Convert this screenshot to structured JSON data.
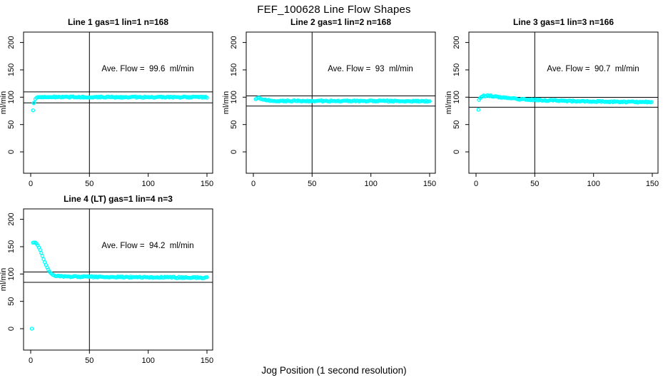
{
  "window": {
    "background": "#ffffff"
  },
  "chart_data": {
    "type": "scatter",
    "title": "FEF_100628  Line Flow Shapes",
    "xlabel": "Jog Position (1 second resolution)",
    "ylabel": "ml/min",
    "marker": "open-circle",
    "marker_color": "#00ffff",
    "axis_color": "#000000",
    "xlim": [
      -6,
      153
    ],
    "ylim": [
      -39,
      219
    ],
    "xticks": [
      0,
      50,
      100,
      150
    ],
    "yticks": [
      0,
      50,
      100,
      150,
      200
    ],
    "vline_x": 50,
    "grid": false,
    "layout": {
      "rows": 2,
      "cols": 3,
      "used_cells": 4
    },
    "panels": [
      {
        "id": "line-1",
        "title": "Line 1 gas=1 lin=1 n=168",
        "annotation": "Ave. Flow =  99.6  ml/min",
        "avg_flow_ml_min": 99.6,
        "n_points": 168,
        "ref_lines": [
          109.6,
          89.6
        ],
        "x_end": 150,
        "profile_keyframes": [
          [
            3,
            90
          ],
          [
            3.5,
            94
          ],
          [
            4,
            96.5
          ],
          [
            5,
            99
          ],
          [
            6,
            99.8
          ],
          [
            8,
            100.2
          ],
          [
            15,
            100.4
          ],
          [
            30,
            100.3
          ],
          [
            60,
            100.2
          ],
          [
            100,
            100.1
          ],
          [
            150,
            100
          ]
        ],
        "outlier_points": [
          [
            2,
            76
          ],
          [
            2.5,
            89
          ]
        ]
      },
      {
        "id": "line-2",
        "title": "Line 2 gas=1 lin=2 n=168",
        "annotation": "Ave. Flow =  93  ml/min",
        "avg_flow_ml_min": 93,
        "n_points": 168,
        "ref_lines": [
          102.3,
          83.7
        ],
        "x_end": 150,
        "profile_keyframes": [
          [
            2,
            96.5
          ],
          [
            3,
            97.8
          ],
          [
            4,
            98.3
          ],
          [
            5,
            98
          ],
          [
            7,
            96.8
          ],
          [
            9,
            95.8
          ],
          [
            12,
            94.6
          ],
          [
            15,
            93.9
          ],
          [
            20,
            93.4
          ],
          [
            30,
            93.2
          ],
          [
            60,
            93.1
          ],
          [
            100,
            93
          ],
          [
            150,
            92.6
          ]
        ],
        "outlier_points": []
      },
      {
        "id": "line-3",
        "title": "Line 3 gas=1 lin=3 n=166",
        "annotation": "Ave. Flow =  90.7  ml/min",
        "avg_flow_ml_min": 90.7,
        "n_points": 166,
        "ref_lines": [
          99.8,
          81.6
        ],
        "x_end": 150,
        "profile_keyframes": [
          [
            2.5,
            95
          ],
          [
            3,
            97
          ],
          [
            4,
            99.5
          ],
          [
            5,
            101.5
          ],
          [
            6,
            102.3
          ],
          [
            8,
            102.8
          ],
          [
            10,
            102.9
          ],
          [
            12,
            102.5
          ],
          [
            15,
            101.5
          ],
          [
            20,
            100
          ],
          [
            25,
            98.7
          ],
          [
            30,
            97.6
          ],
          [
            40,
            96
          ],
          [
            50,
            95
          ],
          [
            60,
            94.2
          ],
          [
            80,
            93
          ],
          [
            100,
            92.2
          ],
          [
            120,
            91.5
          ],
          [
            150,
            90.8
          ]
        ],
        "outlier_points": [
          [
            2,
            77
          ]
        ]
      },
      {
        "id": "line-4",
        "title": "Line 4 (LT) gas=1 lin=4 n=3",
        "annotation": "Ave. Flow =  94.2  ml/min",
        "avg_flow_ml_min": 94.2,
        "n_points": 3,
        "ref_lines": [
          103.6,
          84.8
        ],
        "x_end": 150,
        "profile_keyframes": [
          [
            2,
            158
          ],
          [
            3,
            158.5
          ],
          [
            4,
            157.5
          ],
          [
            5,
            155.5
          ],
          [
            6,
            152.5
          ],
          [
            7,
            148.5
          ],
          [
            8,
            144
          ],
          [
            9,
            138.5
          ],
          [
            10,
            133
          ],
          [
            11,
            127
          ],
          [
            12,
            121.5
          ],
          [
            13,
            116.5
          ],
          [
            14,
            112
          ],
          [
            15,
            108
          ],
          [
            16,
            104.5
          ],
          [
            17,
            102
          ],
          [
            18,
            100
          ],
          [
            19,
            98.5
          ],
          [
            20,
            97.5
          ],
          [
            22,
            96.5
          ],
          [
            25,
            96
          ],
          [
            30,
            95.4
          ],
          [
            40,
            95
          ],
          [
            60,
            94.6
          ],
          [
            100,
            94
          ],
          [
            150,
            93.2
          ]
        ],
        "outlier_points": [
          [
            1,
            0
          ]
        ]
      }
    ]
  }
}
